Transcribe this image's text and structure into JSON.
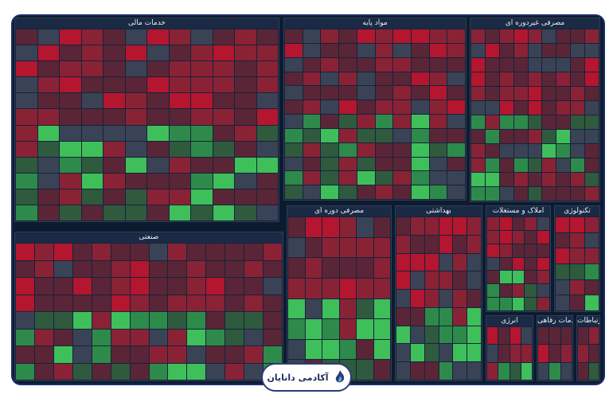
{
  "sectors": [
    {
      "id": "fin",
      "title": "خدمات مالی",
      "cols": 12,
      "rows": 12,
      "tiles": 144
    },
    {
      "id": "basic",
      "title": "مواد پایه",
      "cols": 10,
      "rows": 12,
      "tiles": 120
    },
    {
      "id": "nondur",
      "title": "مصرفی غیردوره ای",
      "cols": 9,
      "rows": 12,
      "tiles": 108
    },
    {
      "id": "ind",
      "title": "صنعتی",
      "cols": 14,
      "rows": 8,
      "tiles": 112
    },
    {
      "id": "cyc",
      "title": "مصرفی دوره ای",
      "cols": 6,
      "rows": 8,
      "tiles": 48
    },
    {
      "id": "health",
      "title": "بهداشتی",
      "cols": 6,
      "rows": 9,
      "tiles": 54
    },
    {
      "id": "real",
      "title": "املاک و مستغلات",
      "cols": 5,
      "rows": 7,
      "tiles": 35
    },
    {
      "id": "tech",
      "title": "تکنولوژی",
      "cols": 3,
      "rows": 6,
      "tiles": 18
    },
    {
      "id": "energy",
      "title": "انرژی",
      "cols": 4,
      "rows": 3,
      "tiles": 12
    },
    {
      "id": "util",
      "title": "خدمات رفاهی",
      "cols": 3,
      "rows": 3,
      "tiles": 9
    },
    {
      "id": "telecom",
      "title": "ارتباطات",
      "cols": 2,
      "rows": 3,
      "tiles": 6
    }
  ],
  "brand": {
    "name": "آکادمی دانایان"
  },
  "colors": {
    "deep_red": "#b3162e",
    "red": "#8a2236",
    "dark_red": "#5a2536",
    "neutral": "#3a4256",
    "dark_green": "#2f5a3e",
    "green": "#2e8a4a",
    "bright_green": "#3fbf5a"
  }
}
